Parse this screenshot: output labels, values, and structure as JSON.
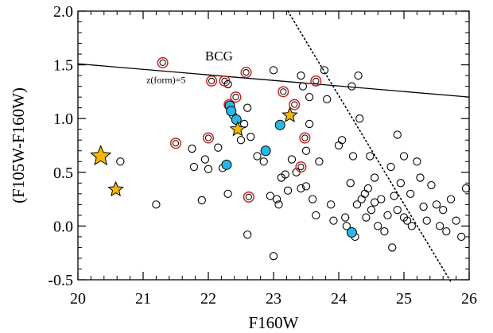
{
  "chart_data": {
    "type": "scatter",
    "xlabel": "F160W",
    "ylabel": "(F105W-F160W)",
    "xlim": [
      20,
      26
    ],
    "ylim": [
      -0.5,
      2.0
    ],
    "x_ticks": [
      20,
      21,
      22,
      23,
      24,
      25,
      26
    ],
    "x_tick_labels": [
      "20",
      "21",
      "22",
      "23",
      "24",
      "25",
      "26"
    ],
    "y_ticks": [
      -0.5,
      0.0,
      0.5,
      1.0,
      1.5,
      2.0
    ],
    "y_tick_labels": [
      "-0.5",
      "0.0",
      "0.5",
      "1.0",
      "1.5",
      "2.0"
    ],
    "annotations": [
      {
        "text": "BCG",
        "x": 21.95,
        "y": 1.54
      },
      {
        "text": "z(form)=5",
        "x": 21.05,
        "y": 1.33
      }
    ],
    "lines": [
      {
        "style": "solid",
        "points": [
          [
            20,
            1.51
          ],
          [
            26,
            1.2
          ]
        ]
      },
      {
        "style": "dotted",
        "points": [
          [
            23.22,
            2.0
          ],
          [
            25.72,
            -0.52
          ]
        ]
      }
    ],
    "series": [
      {
        "marker": "open-circle",
        "color": "#000000",
        "points": [
          [
            20.65,
            0.6
          ],
          [
            21.2,
            0.2
          ],
          [
            21.75,
            0.72
          ],
          [
            21.78,
            0.55
          ],
          [
            21.9,
            0.24
          ],
          [
            21.95,
            0.62
          ],
          [
            22.0,
            0.53
          ],
          [
            22.15,
            0.73
          ],
          [
            22.22,
            0.54
          ],
          [
            22.3,
            0.3
          ],
          [
            22.38,
            1.03
          ],
          [
            22.5,
            0.8
          ],
          [
            22.55,
            0.95
          ],
          [
            22.6,
            1.1
          ],
          [
            22.65,
            0.83
          ],
          [
            22.75,
            0.65
          ],
          [
            22.85,
            0.6
          ],
          [
            22.95,
            0.28
          ],
          [
            23.0,
            1.45
          ],
          [
            23.05,
            0.25
          ],
          [
            23.08,
            0.2
          ],
          [
            23.12,
            0.45
          ],
          [
            23.18,
            0.48
          ],
          [
            23.22,
            0.33
          ],
          [
            23.28,
            0.62
          ],
          [
            23.35,
            0.5
          ],
          [
            23.42,
            0.35
          ],
          [
            23.5,
            0.37
          ],
          [
            23.55,
            1.2
          ],
          [
            23.6,
            0.25
          ],
          [
            23.65,
            0.1
          ],
          [
            23.7,
            0.6
          ],
          [
            23.78,
            1.45
          ],
          [
            23.82,
            1.18
          ],
          [
            23.88,
            0.2
          ],
          [
            23.92,
            0.05
          ],
          [
            24.0,
            0.75
          ],
          [
            24.05,
            0.8
          ],
          [
            24.1,
            0.08
          ],
          [
            24.12,
            0.0
          ],
          [
            24.18,
            0.4
          ],
          [
            24.2,
            1.3
          ],
          [
            24.22,
            0.65
          ],
          [
            24.25,
            -0.1
          ],
          [
            24.28,
            0.2
          ],
          [
            24.3,
            1.4
          ],
          [
            24.35,
            0.25
          ],
          [
            24.4,
            0.3
          ],
          [
            24.42,
            0.08
          ],
          [
            24.45,
            0.35
          ],
          [
            24.5,
            0.15
          ],
          [
            24.55,
            0.22
          ],
          [
            24.6,
            0.0
          ],
          [
            24.65,
            0.25
          ],
          [
            24.7,
            -0.05
          ],
          [
            24.75,
            0.1
          ],
          [
            24.8,
            0.55
          ],
          [
            24.82,
            -0.2
          ],
          [
            24.85,
            0.28
          ],
          [
            24.9,
            0.15
          ],
          [
            24.95,
            0.4
          ],
          [
            25.0,
            0.08
          ],
          [
            25.05,
            0.05
          ],
          [
            25.1,
            0.3
          ],
          [
            25.12,
            0.0
          ],
          [
            25.2,
            0.6
          ],
          [
            25.25,
            0.45
          ],
          [
            25.3,
            0.18
          ],
          [
            25.35,
            0.05
          ],
          [
            25.42,
            0.38
          ],
          [
            25.5,
            0.2
          ],
          [
            25.55,
            0.0
          ],
          [
            25.6,
            0.15
          ],
          [
            25.65,
            -0.05
          ],
          [
            25.72,
            0.25
          ],
          [
            25.8,
            0.05
          ],
          [
            25.88,
            -0.1
          ],
          [
            25.95,
            0.35
          ],
          [
            23.42,
            1.4
          ],
          [
            23.45,
            1.3
          ],
          [
            23.55,
            0.95
          ],
          [
            24.32,
            1.0
          ],
          [
            24.55,
            0.45
          ],
          [
            22.3,
            1.32
          ],
          [
            22.6,
            -0.08
          ],
          [
            23.0,
            -0.28
          ],
          [
            23.5,
            0.7
          ],
          [
            25.0,
            0.65
          ],
          [
            24.48,
            0.65
          ],
          [
            24.9,
            0.85
          ]
        ]
      },
      {
        "marker": "red-ring-circle",
        "color": "#cc2222",
        "points": [
          [
            21.3,
            1.52
          ],
          [
            21.5,
            0.77
          ],
          [
            22.0,
            0.82
          ],
          [
            22.05,
            1.35
          ],
          [
            22.25,
            1.35
          ],
          [
            22.32,
            1.13
          ],
          [
            22.42,
            1.2
          ],
          [
            22.58,
            1.43
          ],
          [
            22.62,
            0.27
          ],
          [
            23.15,
            1.25
          ],
          [
            23.32,
            1.13
          ],
          [
            23.48,
            0.82
          ],
          [
            23.65,
            1.35
          ],
          [
            23.42,
            0.55
          ]
        ]
      },
      {
        "marker": "filled-circle",
        "color": "#29b8e5",
        "points": [
          [
            22.28,
            0.57
          ],
          [
            22.33,
            1.12
          ],
          [
            22.35,
            1.07
          ],
          [
            22.43,
            0.99
          ],
          [
            22.88,
            0.7
          ],
          [
            23.1,
            0.94
          ],
          [
            24.2,
            -0.06
          ]
        ]
      },
      {
        "marker": "star",
        "color": "#f5b800",
        "points": [
          [
            20.35,
            0.65
          ],
          [
            20.58,
            0.34
          ],
          [
            22.45,
            0.9
          ],
          [
            23.25,
            1.03
          ]
        ]
      }
    ]
  }
}
